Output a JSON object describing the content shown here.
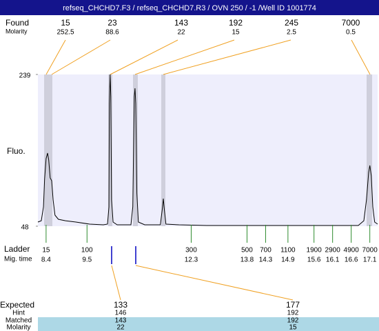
{
  "chart_data": {
    "type": "line",
    "title": "refseq_CHCHD7.F3 / refseq_CHCHD7.R3 / OVN 250 / -1  /Well ID 1001774",
    "y_label": "Fluo.",
    "xlim": [
      8.18,
      17.31
    ],
    "ylim": [
      48,
      239
    ],
    "yticks": [
      48,
      239
    ],
    "x": [
      8.18,
      8.27,
      8.33,
      8.36,
      8.4,
      8.44,
      8.47,
      8.51,
      8.55,
      8.59,
      8.64,
      8.73,
      8.92,
      9.2,
      9.57,
      9.94,
      10.05,
      10.09,
      10.1,
      10.12,
      10.14,
      10.16,
      10.2,
      10.31,
      10.68,
      10.73,
      10.77,
      10.79,
      10.81,
      10.84,
      10.88,
      11.05,
      11.47,
      11.53,
      11.55,
      11.58,
      11.62,
      11.97,
      12.71,
      14.57,
      16.79,
      16.94,
      17.01,
      17.07,
      17.1,
      17.14,
      17.18,
      17.23,
      17.31
    ],
    "series": [
      {
        "name": "Fluo.",
        "color": "#000000",
        "values": [
          53.2,
          54.9,
          72.3,
          107.0,
          133.1,
          140.0,
          131.3,
          108.8,
          105.3,
          81.0,
          61.9,
          56.7,
          54.9,
          53.2,
          50.6,
          49.7,
          50.6,
          72.3,
          202.5,
          239,
          211.2,
          81.0,
          53.2,
          49.7,
          49.7,
          72.3,
          211.2,
          221.6,
          202.5,
          89.7,
          53.2,
          49.7,
          49.7,
          72.3,
          82.7,
          68.0,
          50.6,
          49.7,
          48.9,
          48.9,
          48.9,
          54.9,
          81.0,
          115.7,
          124.4,
          111.4,
          72.3,
          53.2,
          50.6
        ]
      }
    ],
    "found": {
      "label": "Found",
      "sublabel": "Molarity",
      "sizes": [
        15,
        23,
        143,
        192,
        245,
        7000
      ],
      "molarity": [
        252.5,
        88.6,
        22,
        15,
        2.5,
        0.5
      ]
    },
    "ladder": {
      "label": "Ladder",
      "sublabel": "Mig. time",
      "sizes": [
        15,
        100,
        300,
        500,
        700,
        1100,
        1900,
        2900,
        4900,
        7000
      ],
      "times": [
        8.4,
        9.5,
        12.3,
        13.8,
        14.3,
        14.9,
        15.6,
        16.1,
        16.6,
        17.1
      ]
    },
    "expected": {
      "labels": [
        "Expected",
        "Hint",
        "Matched",
        "Molarity"
      ],
      "expected": [
        133,
        177
      ],
      "hint": [
        146,
        192
      ],
      "matched": [
        143,
        192
      ],
      "molarity": [
        22,
        15
      ]
    }
  }
}
